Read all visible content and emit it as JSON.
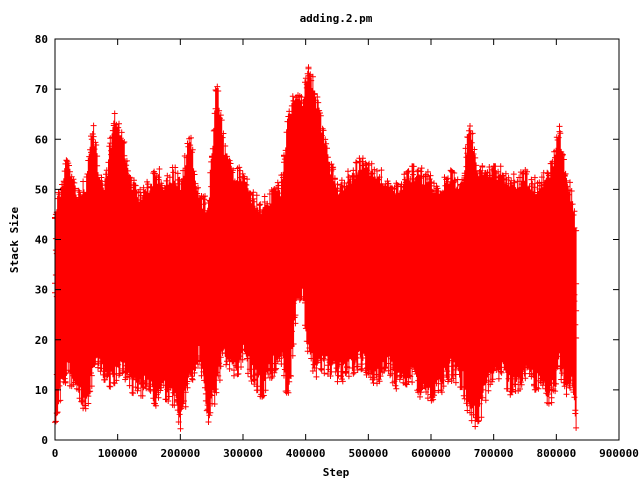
{
  "chart_data": {
    "type": "scatter",
    "title": "adding.2.pm",
    "xlabel": "Step",
    "ylabel": "Stack Size",
    "xlim": [
      0,
      900000
    ],
    "ylim": [
      0,
      80
    ],
    "xticks": [
      0,
      100000,
      200000,
      300000,
      400000,
      500000,
      600000,
      700000,
      800000,
      900000
    ],
    "xtick_labels": [
      "0",
      "100000",
      "200000",
      "300000",
      "400000",
      "500000",
      "600000",
      "700000",
      "800000",
      "900000"
    ],
    "yticks": [
      0,
      10,
      20,
      30,
      40,
      50,
      60,
      70,
      80
    ],
    "ytick_labels": [
      "0",
      "10",
      "20",
      "30",
      "40",
      "50",
      "60",
      "70",
      "80"
    ],
    "marker": "+",
    "color": "#ff0000",
    "x_end": 832000,
    "envelope": {
      "x": [
        0,
        10000,
        20000,
        35000,
        50000,
        60000,
        70000,
        80000,
        95000,
        105000,
        120000,
        135000,
        150000,
        160000,
        175000,
        190000,
        200000,
        215000,
        230000,
        245000,
        258000,
        270000,
        285000,
        300000,
        315000,
        330000,
        345000,
        360000,
        372000,
        385000,
        395000,
        405000,
        420000,
        435000,
        450000,
        470000,
        490000,
        510000,
        530000,
        550000,
        570000,
        590000,
        610000,
        630000,
        650000,
        662000,
        675000,
        690000,
        710000,
        730000,
        750000,
        770000,
        790000,
        805000,
        815000,
        825000,
        832000
      ],
      "max": [
        47,
        52,
        58,
        50,
        53,
        65,
        55,
        52,
        67,
        63,
        54,
        50,
        52,
        55,
        53,
        55,
        52,
        62,
        50,
        48,
        74,
        60,
        55,
        54,
        50,
        48,
        50,
        52,
        66,
        71,
        70,
        76,
        68,
        58,
        52,
        54,
        57,
        55,
        53,
        52,
        55,
        54,
        52,
        54,
        53,
        65,
        56,
        55,
        55,
        53,
        54,
        52,
        55,
        63,
        55,
        50,
        44
      ],
      "min": [
        2,
        8,
        12,
        7,
        5,
        10,
        14,
        9,
        11,
        13,
        9,
        8,
        10,
        5,
        8,
        6,
        2,
        10,
        15,
        3,
        8,
        16,
        11,
        15,
        11,
        8,
        12,
        16,
        6,
        24,
        28,
        15,
        12,
        13,
        11,
        12,
        14,
        10,
        13,
        9,
        11,
        7,
        8,
        12,
        10,
        3,
        2,
        9,
        12,
        8,
        11,
        9,
        6,
        13,
        8,
        10,
        0
      ]
    }
  }
}
